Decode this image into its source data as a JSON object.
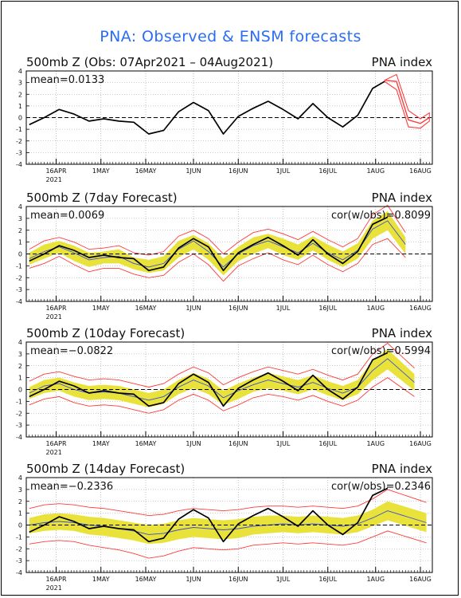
{
  "title": "PNA: Observed & ENSM forecasts",
  "x_ticks": [
    "16APR",
    "1MAY",
    "16MAY",
    "1JUN",
    "16JUN",
    "1JUL",
    "16JUL",
    "1AUG",
    "16AUG"
  ],
  "x_year": "2021",
  "y_ticks": [
    "4",
    "3",
    "2",
    "1",
    "0",
    "-1",
    "-2",
    "-3",
    "-4"
  ],
  "colors": {
    "title": "#2a6df4",
    "observed": "#000000",
    "ensemble_spread": "#e8e23a",
    "ensemble_members": "#ff3b3b",
    "ensemble_mean": "#3a4fcf"
  },
  "panels": [
    {
      "left_label": "500mb Z (Obs: 07Apr2021 – 04Aug2021)",
      "right_label": "PNA index",
      "mean_label": "mean=0.0133",
      "cor_label": ""
    },
    {
      "left_label": "500mb Z (7day Forecast)",
      "right_label": "PNA index",
      "mean_label": "mean=0.0069",
      "cor_label": "cor(w/obs)=0.8099"
    },
    {
      "left_label": "500mb Z (10day Forecast)",
      "right_label": "PNA index",
      "mean_label": "mean=−0.0822",
      "cor_label": "cor(w/obs)=0.5994"
    },
    {
      "left_label": "500mb Z (14day Forecast)",
      "right_label": "PNA index",
      "mean_label": "mean=−0.2336",
      "cor_label": "cor(w/obs)=0.2346"
    }
  ],
  "chart_data": [
    {
      "type": "line",
      "title": "500mb Z (Obs: 07Apr2021 – 04Aug2021)",
      "ylabel": "PNA index",
      "ylim": [
        -4,
        4
      ],
      "grid": true,
      "x_dates": [
        "2021-04-07",
        "2021-04-12",
        "2021-04-17",
        "2021-04-22",
        "2021-04-27",
        "2021-05-02",
        "2021-05-07",
        "2021-05-12",
        "2021-05-17",
        "2021-05-22",
        "2021-05-27",
        "2021-06-01",
        "2021-06-06",
        "2021-06-11",
        "2021-06-16",
        "2021-06-21",
        "2021-06-26",
        "2021-07-01",
        "2021-07-06",
        "2021-07-11",
        "2021-07-16",
        "2021-07-21",
        "2021-07-26",
        "2021-07-31",
        "2021-08-04"
      ],
      "series": [
        {
          "name": "observed",
          "values": [
            -0.6,
            0.0,
            0.7,
            0.3,
            -0.3,
            -0.1,
            -0.3,
            -0.4,
            -1.4,
            -1.1,
            0.5,
            1.3,
            0.6,
            -1.4,
            0.1,
            0.8,
            1.4,
            0.7,
            -0.1,
            1.2,
            0.0,
            -0.8,
            0.2,
            2.5,
            3.1
          ]
        },
        {
          "name": "members-min",
          "values": []
        }
      ],
      "forecast_members": {
        "dates": [
          "2021-08-04",
          "2021-08-08",
          "2021-08-12",
          "2021-08-16",
          "2021-08-19"
        ],
        "low": [
          3.1,
          2.4,
          -0.8,
          -0.9,
          -0.3
        ],
        "high": [
          3.2,
          3.7,
          0.6,
          -0.1,
          0.4
        ],
        "mean": [
          3.2,
          3.1,
          -0.2,
          -0.5,
          0.0
        ]
      }
    },
    {
      "type": "area",
      "title": "500mb Z (7day Forecast)",
      "ylabel": "PNA index",
      "ylim": [
        -4,
        4
      ],
      "x_dates": [
        "2021-04-07",
        "2021-04-12",
        "2021-04-17",
        "2021-04-22",
        "2021-04-27",
        "2021-05-02",
        "2021-05-07",
        "2021-05-12",
        "2021-05-17",
        "2021-05-22",
        "2021-05-27",
        "2021-06-01",
        "2021-06-06",
        "2021-06-11",
        "2021-06-16",
        "2021-06-21",
        "2021-06-26",
        "2021-07-01",
        "2021-07-06",
        "2021-07-11",
        "2021-07-16",
        "2021-07-21",
        "2021-07-26",
        "2021-07-31",
        "2021-08-05",
        "2021-08-11"
      ],
      "series": [
        {
          "name": "observed",
          "values": [
            -0.6,
            0.0,
            0.7,
            0.3,
            -0.3,
            -0.1,
            -0.3,
            -0.4,
            -1.4,
            -1.1,
            0.5,
            1.3,
            0.6,
            -1.4,
            0.1,
            0.8,
            1.4,
            0.7,
            -0.1,
            1.2,
            0.0,
            -0.8,
            0.2,
            2.5,
            3.1,
            null
          ]
        },
        {
          "name": "ensemble mean",
          "values": [
            -0.4,
            0.2,
            0.6,
            0.1,
            -0.5,
            -0.3,
            -0.2,
            -0.8,
            -1.1,
            -0.8,
            0.4,
            1.1,
            0.2,
            -1.1,
            0.0,
            0.7,
            1.1,
            0.6,
            0.1,
            0.9,
            0.1,
            -0.5,
            0.3,
            2.1,
            2.8,
            0.8
          ]
        },
        {
          "name": "spread low",
          "values": [
            -0.9,
            -0.4,
            0.1,
            -0.6,
            -1.1,
            -0.8,
            -0.8,
            -1.3,
            -1.6,
            -1.4,
            -0.3,
            0.4,
            -0.5,
            -1.8,
            -0.6,
            0.0,
            0.5,
            -0.1,
            -0.5,
            0.3,
            -0.5,
            -1.1,
            -0.4,
            1.3,
            2.0,
            0.0
          ]
        },
        {
          "name": "spread high",
          "values": [
            0.1,
            0.8,
            1.1,
            0.7,
            0.1,
            0.2,
            0.4,
            -0.3,
            -0.5,
            -0.2,
            1.1,
            1.6,
            0.9,
            -0.4,
            0.6,
            1.4,
            1.7,
            1.3,
            0.8,
            1.5,
            0.8,
            0.2,
            0.9,
            2.8,
            3.6,
            1.4
          ]
        },
        {
          "name": "members min",
          "values": [
            -1.2,
            -0.8,
            -0.2,
            -0.9,
            -1.5,
            -1.2,
            -1.2,
            -1.7,
            -2.0,
            -1.8,
            -0.7,
            0.0,
            -0.9,
            -2.3,
            -1.0,
            -0.4,
            0.1,
            -0.5,
            -0.9,
            -0.1,
            -0.9,
            -1.5,
            -0.8,
            0.8,
            1.3,
            -0.3
          ]
        },
        {
          "name": "members max",
          "values": [
            0.4,
            1.1,
            1.4,
            1.0,
            0.4,
            0.5,
            0.7,
            0.1,
            -0.1,
            0.2,
            1.5,
            2.0,
            1.3,
            0.0,
            1.0,
            1.8,
            2.1,
            1.7,
            1.2,
            1.9,
            1.2,
            0.6,
            1.3,
            3.3,
            4.1,
            1.8
          ]
        }
      ]
    },
    {
      "type": "area",
      "title": "500mb Z (10day Forecast)",
      "ylabel": "PNA index",
      "ylim": [
        -4,
        4
      ],
      "x_dates": [
        "2021-04-07",
        "2021-04-12",
        "2021-04-17",
        "2021-04-22",
        "2021-04-27",
        "2021-05-02",
        "2021-05-07",
        "2021-05-12",
        "2021-05-17",
        "2021-05-22",
        "2021-05-27",
        "2021-06-01",
        "2021-06-06",
        "2021-06-11",
        "2021-06-16",
        "2021-06-21",
        "2021-06-26",
        "2021-07-01",
        "2021-07-06",
        "2021-07-11",
        "2021-07-16",
        "2021-07-21",
        "2021-07-26",
        "2021-07-31",
        "2021-08-05",
        "2021-08-14"
      ],
      "series": [
        {
          "name": "observed",
          "values": [
            -0.6,
            0.0,
            0.7,
            0.3,
            -0.3,
            -0.1,
            -0.3,
            -0.4,
            -1.4,
            -1.1,
            0.5,
            1.3,
            0.6,
            -1.4,
            0.1,
            0.8,
            1.4,
            0.7,
            -0.1,
            1.2,
            0.0,
            -0.8,
            0.2,
            2.5,
            3.1,
            null
          ]
        },
        {
          "name": "ensemble mean",
          "values": [
            -0.3,
            0.3,
            0.5,
            0.0,
            -0.3,
            -0.2,
            -0.3,
            -0.6,
            -0.9,
            -0.6,
            0.2,
            0.8,
            0.3,
            -0.7,
            -0.1,
            0.4,
            0.8,
            0.5,
            0.2,
            0.6,
            0.1,
            -0.3,
            0.2,
            1.6,
            2.6,
            0.6
          ]
        },
        {
          "name": "spread low",
          "values": [
            -0.8,
            -0.3,
            -0.1,
            -0.6,
            -0.9,
            -0.8,
            -0.9,
            -1.2,
            -1.5,
            -1.2,
            -0.4,
            0.1,
            -0.4,
            -1.3,
            -0.8,
            -0.2,
            0.1,
            -0.1,
            -0.4,
            0.0,
            -0.5,
            -0.9,
            -0.4,
            0.8,
            1.7,
            -0.1
          ]
        },
        {
          "name": "spread high",
          "values": [
            0.2,
            0.8,
            1.0,
            0.6,
            0.3,
            0.4,
            0.3,
            0.0,
            -0.3,
            0.0,
            0.8,
            1.4,
            0.9,
            -0.1,
            0.5,
            1.0,
            1.4,
            1.1,
            0.8,
            1.2,
            0.7,
            0.3,
            0.8,
            2.4,
            3.4,
            1.3
          ]
        },
        {
          "name": "members min",
          "values": [
            -1.3,
            -0.8,
            -0.6,
            -1.1,
            -1.4,
            -1.3,
            -1.4,
            -1.7,
            -2.0,
            -1.7,
            -0.9,
            -0.4,
            -0.9,
            -1.8,
            -1.3,
            -0.7,
            -0.4,
            -0.6,
            -0.9,
            -0.5,
            -1.0,
            -1.4,
            -0.9,
            0.2,
            1.0,
            -0.6
          ]
        },
        {
          "name": "members max",
          "values": [
            0.7,
            1.3,
            1.5,
            1.1,
            0.8,
            0.9,
            0.8,
            0.5,
            0.2,
            0.5,
            1.3,
            1.9,
            1.4,
            0.4,
            1.0,
            1.5,
            1.9,
            1.6,
            1.3,
            1.7,
            1.2,
            0.8,
            1.3,
            3.0,
            3.9,
            1.8
          ]
        }
      ]
    },
    {
      "type": "area",
      "title": "500mb Z (14day Forecast)",
      "ylabel": "PNA index",
      "ylim": [
        -4,
        4
      ],
      "x_dates": [
        "2021-04-07",
        "2021-04-12",
        "2021-04-17",
        "2021-04-22",
        "2021-04-27",
        "2021-05-02",
        "2021-05-07",
        "2021-05-12",
        "2021-05-17",
        "2021-05-22",
        "2021-05-27",
        "2021-06-01",
        "2021-06-06",
        "2021-06-11",
        "2021-06-16",
        "2021-06-21",
        "2021-06-26",
        "2021-07-01",
        "2021-07-06",
        "2021-07-11",
        "2021-07-16",
        "2021-07-21",
        "2021-07-26",
        "2021-07-31",
        "2021-08-05",
        "2021-08-18"
      ],
      "series": [
        {
          "name": "observed",
          "values": [
            -0.6,
            0.0,
            0.7,
            0.3,
            -0.3,
            -0.1,
            -0.3,
            -0.4,
            -1.4,
            -1.1,
            0.5,
            1.3,
            0.6,
            -1.4,
            0.1,
            0.8,
            1.4,
            0.7,
            -0.1,
            1.2,
            0.0,
            -0.8,
            0.2,
            2.5,
            3.1,
            null
          ]
        },
        {
          "name": "ensemble mean",
          "values": [
            0.0,
            0.2,
            0.3,
            0.2,
            0.0,
            -0.1,
            -0.3,
            -0.5,
            -0.8,
            -0.7,
            -0.4,
            -0.2,
            -0.3,
            -0.4,
            -0.3,
            -0.1,
            0.0,
            0.1,
            0.0,
            0.1,
            0.0,
            -0.1,
            0.1,
            0.6,
            1.2,
            0.2
          ]
        },
        {
          "name": "spread low",
          "values": [
            -0.7,
            -0.5,
            -0.4,
            -0.5,
            -0.8,
            -0.9,
            -1.1,
            -1.3,
            -1.6,
            -1.5,
            -1.2,
            -1.0,
            -1.1,
            -1.2,
            -1.1,
            -0.8,
            -0.7,
            -0.6,
            -0.7,
            -0.6,
            -0.7,
            -0.8,
            -0.6,
            -0.1,
            0.4,
            -0.6
          ]
        },
        {
          "name": "spread high",
          "values": [
            0.6,
            0.9,
            1.0,
            0.9,
            0.7,
            0.6,
            0.4,
            0.2,
            0.0,
            0.1,
            0.4,
            0.6,
            0.5,
            0.4,
            0.5,
            0.7,
            0.8,
            0.8,
            0.7,
            0.8,
            0.7,
            0.6,
            0.8,
            1.3,
            2.0,
            1.0
          ]
        },
        {
          "name": "members min",
          "values": [
            -1.6,
            -1.4,
            -1.3,
            -1.4,
            -1.7,
            -1.9,
            -2.1,
            -2.4,
            -2.8,
            -2.6,
            -2.2,
            -1.9,
            -2.0,
            -2.1,
            -2.0,
            -1.7,
            -1.6,
            -1.5,
            -1.6,
            -1.5,
            -1.6,
            -1.7,
            -1.5,
            -1.0,
            -0.5,
            -1.5
          ]
        },
        {
          "name": "members max",
          "values": [
            1.4,
            1.7,
            1.8,
            1.7,
            1.5,
            1.4,
            1.2,
            1.0,
            0.8,
            0.9,
            1.2,
            1.4,
            1.3,
            1.2,
            1.3,
            1.5,
            1.6,
            1.6,
            1.5,
            1.6,
            1.5,
            1.4,
            1.6,
            2.2,
            3.0,
            1.9
          ]
        }
      ]
    }
  ]
}
